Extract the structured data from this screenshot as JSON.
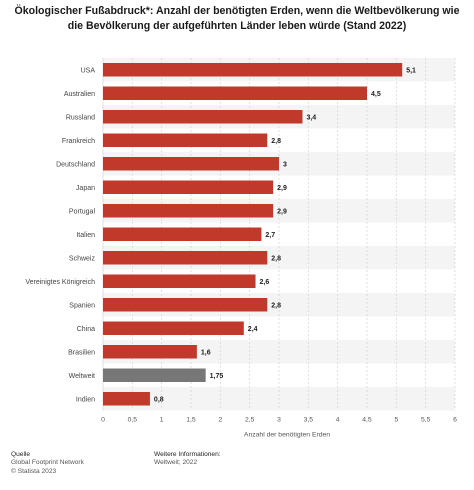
{
  "title": "Ökologischer Fußabdruck*: Anzahl der benötigten Erden, wenn die Weltbevölkerung wie die Bevölkerung der aufgeführten Länder leben würde (Stand 2022)",
  "footer": {
    "source_label": "Quelle",
    "source": "Global Footprint Network",
    "copyright": "© Statista 2023",
    "info_label": "Weitere Informationen:",
    "info": "Weltweit; 2022"
  },
  "colors": {
    "bar": "#c0392b",
    "highlight": "#777777",
    "alt_row": "#f4f4f4",
    "grid": "#d8d8d8"
  },
  "chart_data": {
    "type": "bar",
    "orientation": "horizontal",
    "categories": [
      "USA",
      "Australien",
      "Russland",
      "Frankreich",
      "Deutschland",
      "Japan",
      "Portugal",
      "Italien",
      "Schweiz",
      "Vereinigtes Königreich",
      "Spanien",
      "China",
      "Brasilien",
      "Weltweit",
      "Indien"
    ],
    "values": [
      5.1,
      4.5,
      3.4,
      2.8,
      3,
      2.9,
      2.9,
      2.7,
      2.8,
      2.6,
      2.8,
      2.4,
      1.6,
      1.75,
      0.8
    ],
    "value_labels": [
      "5,1",
      "4,5",
      "3,4",
      "2,8",
      "3",
      "2,9",
      "2,9",
      "2,7",
      "2,8",
      "2,6",
      "2,8",
      "2,4",
      "1,6",
      "1,75",
      "0,8"
    ],
    "highlight": "Weltweit",
    "xlabel": "Anzahl der benötigten Erden",
    "ylabel": "",
    "xlim": [
      0,
      6
    ],
    "xticks": [
      "0",
      "0,5",
      "1",
      "1,5",
      "2",
      "2,5",
      "3",
      "3,5",
      "4",
      "4,5",
      "5",
      "5,5",
      "6"
    ],
    "grid": true
  }
}
